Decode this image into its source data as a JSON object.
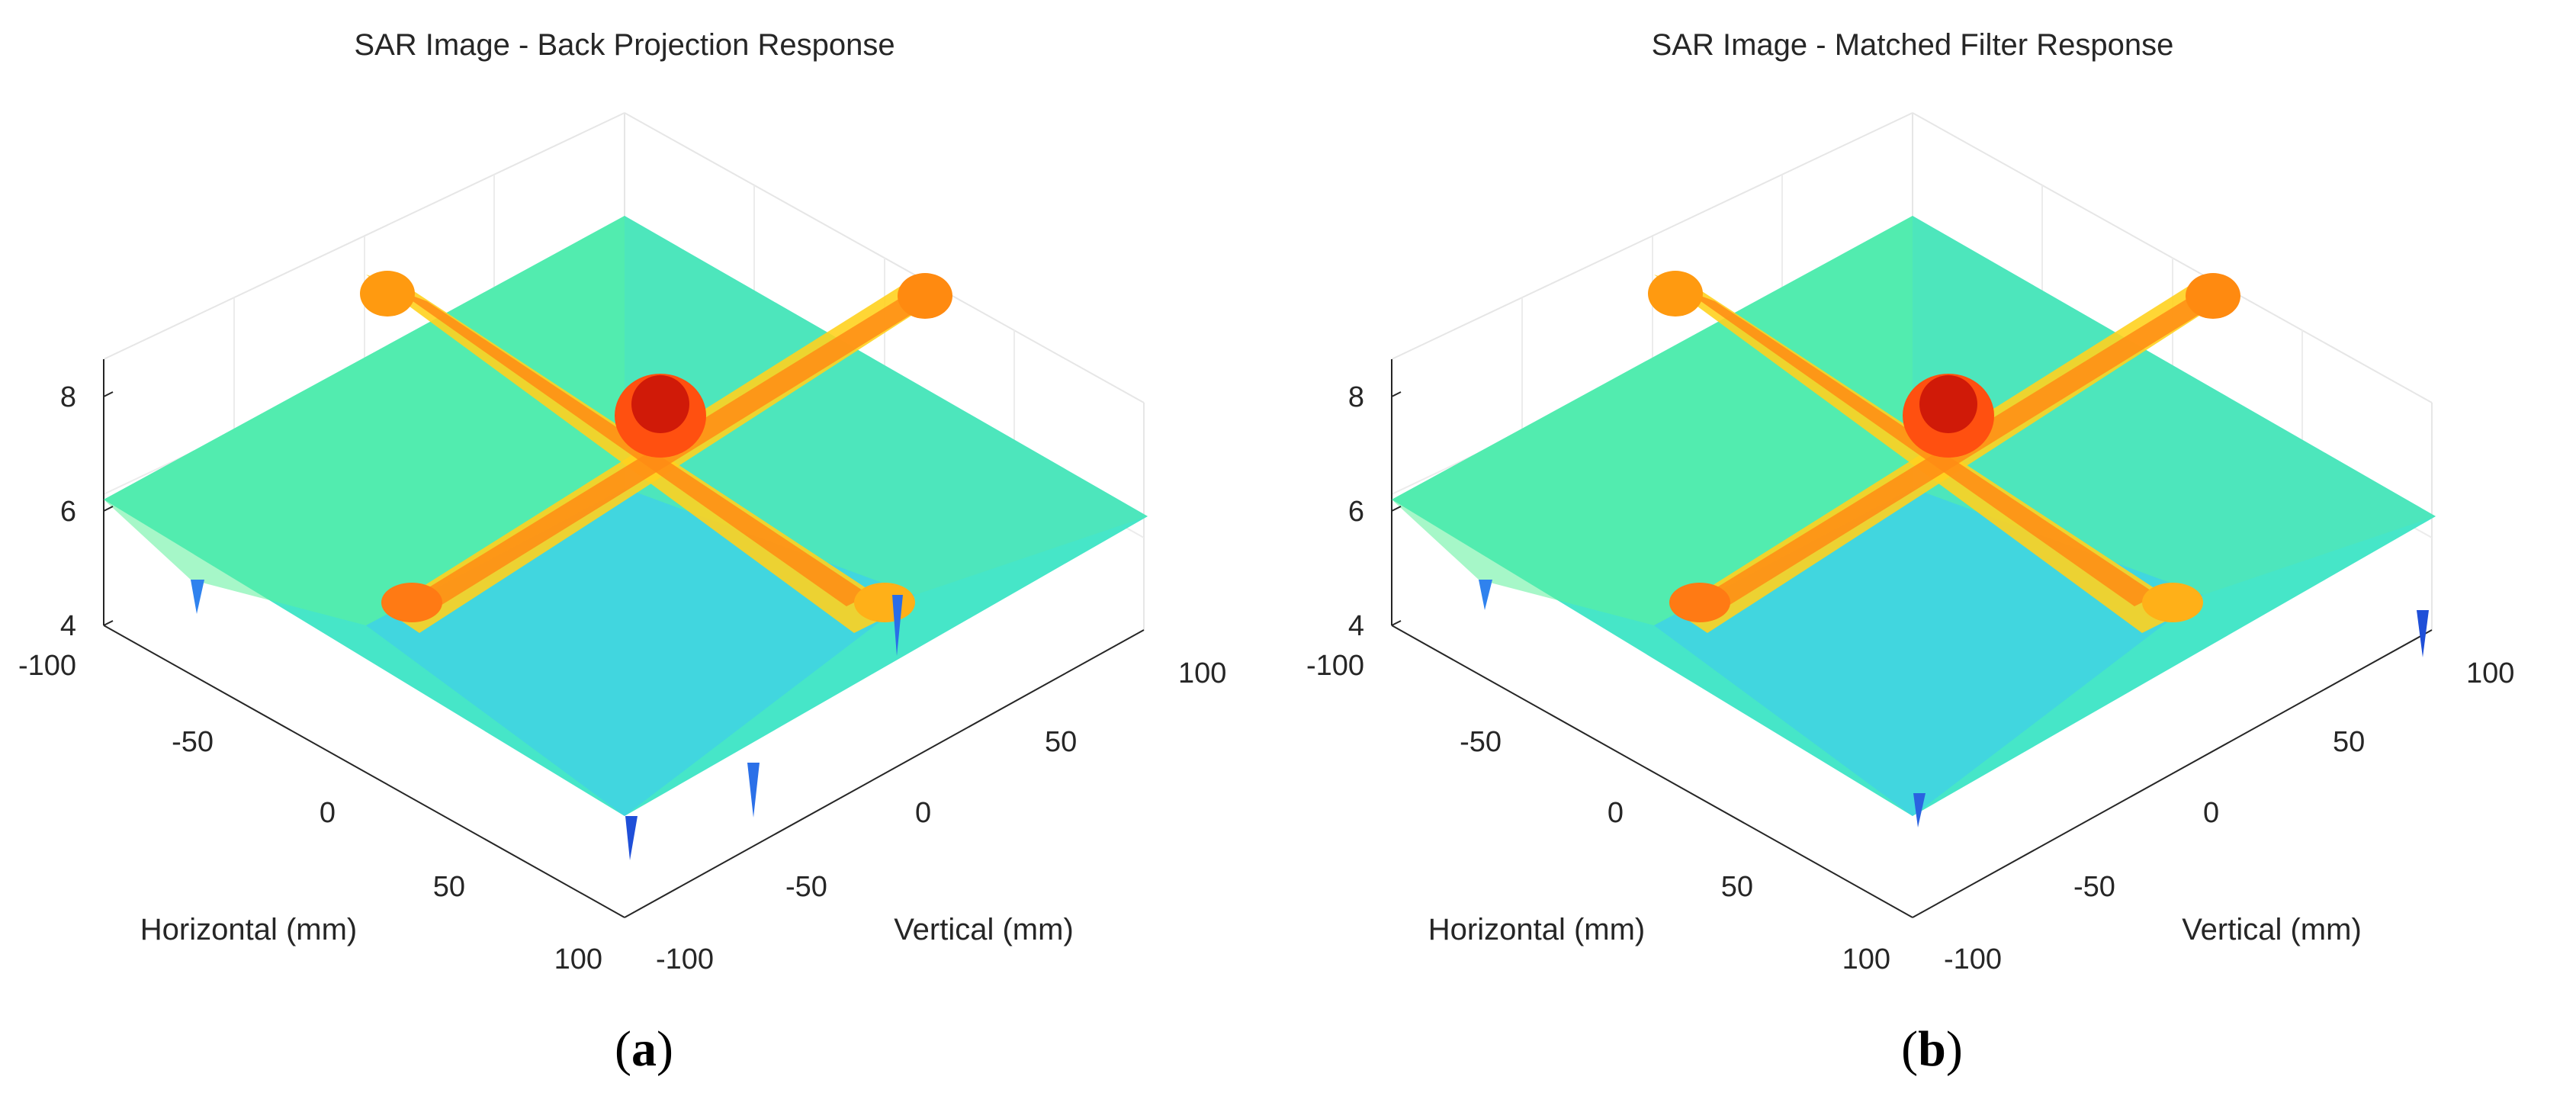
{
  "figure_label": "SAR surface plots",
  "chart_data": [
    {
      "type": "surface",
      "title": "SAR Image - Back Projection Response",
      "caption": "(a)",
      "caption_letter": "a",
      "xlabel": "Horizontal (mm)",
      "ylabel": "Vertical (mm)",
      "zlabel": "",
      "xlim": [
        -100,
        100
      ],
      "ylim": [
        -100,
        100
      ],
      "zlim": [
        4,
        8
      ],
      "x_ticks": [
        "-100",
        "-50",
        "0",
        "50",
        "100"
      ],
      "y_ticks": [
        "-100",
        "-50",
        "0",
        "50",
        "100"
      ],
      "z_ticks": [
        "4",
        "6",
        "8"
      ],
      "grid": true,
      "colormap": "jet",
      "surface": {
        "description": "cross-shaped sidelobe pattern with central peak",
        "peak_value": 8.2,
        "peak_location": [
          0,
          0
        ],
        "cross_ridge_level": 7.1,
        "background_level": 5.9,
        "minimum_level": 4.3
      }
    },
    {
      "type": "surface",
      "title": "SAR Image - Matched Filter Response",
      "caption": "(b)",
      "caption_letter": "b",
      "xlabel": "Horizontal (mm)",
      "ylabel": "Vertical (mm)",
      "zlabel": "",
      "xlim": [
        -100,
        100
      ],
      "ylim": [
        -100,
        100
      ],
      "zlim": [
        4,
        8
      ],
      "x_ticks": [
        "-100",
        "-50",
        "0",
        "50",
        "100"
      ],
      "y_ticks": [
        "-100",
        "-50",
        "0",
        "50",
        "100"
      ],
      "z_ticks": [
        "4",
        "6",
        "8"
      ],
      "grid": true,
      "colormap": "jet",
      "surface": {
        "description": "cross-shaped sidelobe pattern with central peak",
        "peak_value": 8.2,
        "peak_location": [
          0,
          0
        ],
        "cross_ridge_level": 7.1,
        "background_level": 5.9,
        "minimum_level": 4.5
      }
    }
  ]
}
